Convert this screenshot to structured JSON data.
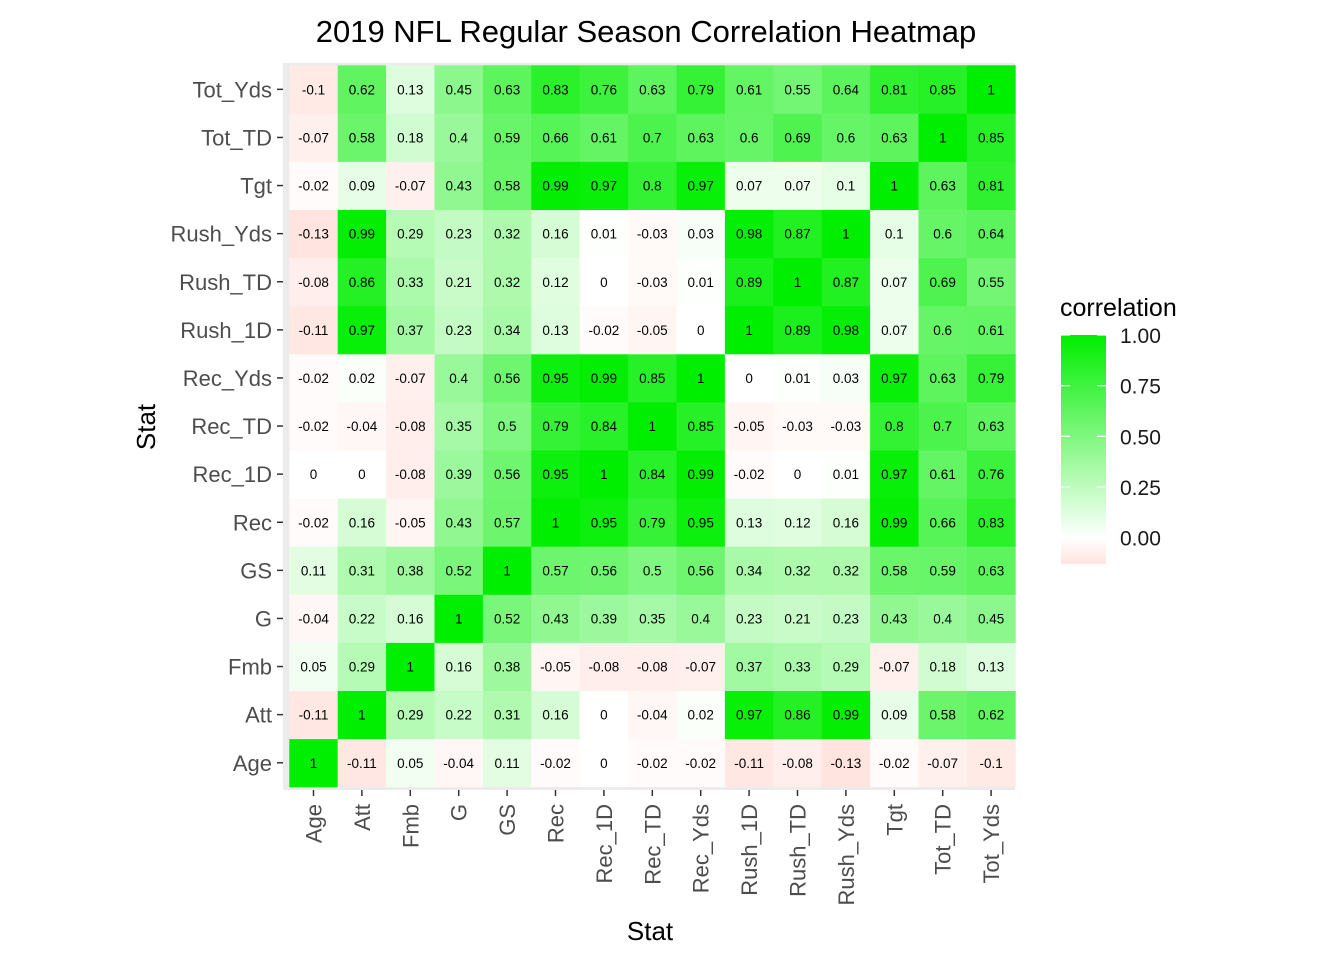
{
  "chart_data": {
    "type": "heatmap",
    "title": "2019 NFL Regular Season Correlation Heatmap",
    "xlabel": "Stat",
    "ylabel": "Stat",
    "categories": [
      "Age",
      "Att",
      "Fmb",
      "G",
      "GS",
      "Rec",
      "Rec_1D",
      "Rec_TD",
      "Rec_Yds",
      "Rush_1D",
      "Rush_TD",
      "Rush_Yds",
      "Tgt",
      "Tot_TD",
      "Tot_Yds"
    ],
    "matrix": [
      [
        1,
        -0.11,
        0.05,
        -0.04,
        0.11,
        -0.02,
        0,
        -0.02,
        -0.02,
        -0.11,
        -0.08,
        -0.13,
        -0.02,
        -0.07,
        -0.1
      ],
      [
        -0.11,
        1,
        0.29,
        0.22,
        0.31,
        0.16,
        0,
        -0.04,
        0.02,
        0.97,
        0.86,
        0.99,
        0.09,
        0.58,
        0.62
      ],
      [
        0.05,
        0.29,
        1,
        0.16,
        0.38,
        -0.05,
        -0.08,
        -0.08,
        -0.07,
        0.37,
        0.33,
        0.29,
        -0.07,
        0.18,
        0.13
      ],
      [
        -0.04,
        0.22,
        0.16,
        1,
        0.52,
        0.43,
        0.39,
        0.35,
        0.4,
        0.23,
        0.21,
        0.23,
        0.43,
        0.4,
        0.45
      ],
      [
        0.11,
        0.31,
        0.38,
        0.52,
        1,
        0.57,
        0.56,
        0.5,
        0.56,
        0.34,
        0.32,
        0.32,
        0.58,
        0.59,
        0.63
      ],
      [
        -0.02,
        0.16,
        -0.05,
        0.43,
        0.57,
        1,
        0.95,
        0.79,
        0.95,
        0.13,
        0.12,
        0.16,
        0.99,
        0.66,
        0.83
      ],
      [
        0,
        0,
        -0.08,
        0.39,
        0.56,
        0.95,
        1,
        0.84,
        0.99,
        -0.02,
        0,
        0.01,
        0.97,
        0.61,
        0.76
      ],
      [
        -0.02,
        -0.04,
        -0.08,
        0.35,
        0.5,
        0.79,
        0.84,
        1,
        0.85,
        -0.05,
        -0.03,
        -0.03,
        0.8,
        0.7,
        0.63
      ],
      [
        -0.02,
        0.02,
        -0.07,
        0.4,
        0.56,
        0.95,
        0.99,
        0.85,
        1,
        0,
        0.01,
        0.03,
        0.97,
        0.63,
        0.79
      ],
      [
        -0.11,
        0.97,
        0.37,
        0.23,
        0.34,
        0.13,
        -0.02,
        -0.05,
        0,
        1,
        0.89,
        0.98,
        0.07,
        0.6,
        0.61
      ],
      [
        -0.08,
        0.86,
        0.33,
        0.21,
        0.32,
        0.12,
        0,
        -0.03,
        0.01,
        0.89,
        1,
        0.87,
        0.07,
        0.69,
        0.55
      ],
      [
        -0.13,
        0.99,
        0.29,
        0.23,
        0.32,
        0.16,
        0.01,
        -0.03,
        0.03,
        0.98,
        0.87,
        1,
        0.1,
        0.6,
        0.64
      ],
      [
        -0.02,
        0.09,
        -0.07,
        0.43,
        0.58,
        0.99,
        0.97,
        0.8,
        0.97,
        0.07,
        0.07,
        0.1,
        1,
        0.63,
        0.81
      ],
      [
        -0.07,
        0.58,
        0.18,
        0.4,
        0.59,
        0.66,
        0.61,
        0.7,
        0.63,
        0.6,
        0.69,
        0.6,
        0.63,
        1,
        0.85
      ],
      [
        -0.1,
        0.62,
        0.13,
        0.45,
        0.63,
        0.83,
        0.76,
        0.63,
        0.79,
        0.61,
        0.55,
        0.64,
        0.81,
        0.85,
        1
      ]
    ],
    "matrix_orientation": "matrix[i][j] is the value at x = categories[i], y = categories[j]",
    "legend": {
      "title": "correlation",
      "ticks": [
        "1.00",
        "0.75",
        "0.50",
        "0.25",
        "0.00"
      ],
      "tick_values": [
        1,
        0.75,
        0.5,
        0.25,
        0
      ],
      "range": [
        -0.13,
        1
      ],
      "placement": "right"
    },
    "colors": {
      "high": "#00ee00",
      "mid": "#ffffff",
      "low": "#ffe4df",
      "panel_background": "#ebebeb"
    },
    "grid": true
  }
}
